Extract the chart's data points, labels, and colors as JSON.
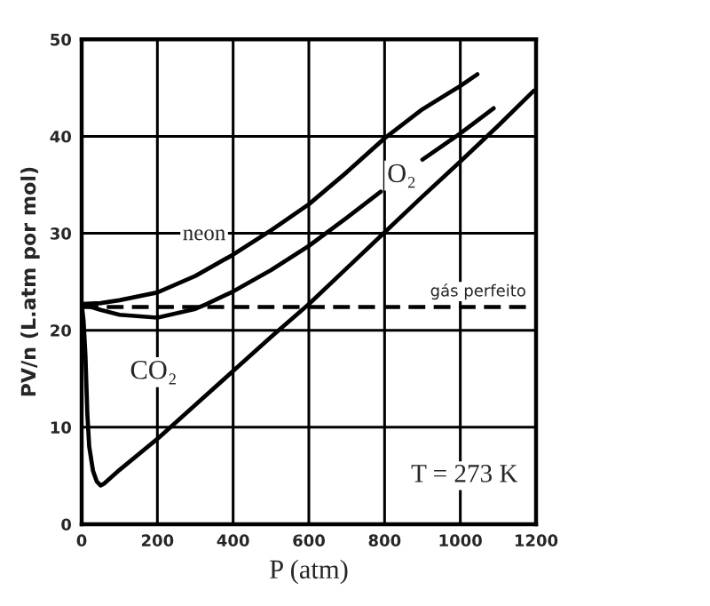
{
  "chart_data": {
    "type": "line",
    "xlabel": "P (atm)",
    "ylabel": "PV/n (L.atm por mol)",
    "xlim": [
      0,
      1200
    ],
    "ylim": [
      0,
      50
    ],
    "xticks": [
      0,
      200,
      400,
      600,
      800,
      1000,
      1200
    ],
    "yticks": [
      0,
      10,
      20,
      30,
      40,
      50
    ],
    "grid": true,
    "legend": false,
    "marker": "none",
    "annotations": [
      "T = 273 K"
    ],
    "series": [
      {
        "name": "neon",
        "color": "#000000",
        "line_style": "solid",
        "x": [
          0,
          50,
          100,
          200,
          300,
          400,
          500,
          600,
          700,
          800,
          900,
          1000,
          1045
        ],
        "values": [
          22.7,
          22.8,
          23.1,
          23.9,
          25.6,
          27.8,
          30.3,
          33.0,
          36.3,
          39.8,
          42.8,
          45.2,
          46.4
        ]
      },
      {
        "name": "O₂",
        "color": "#000000",
        "line_style": "solid",
        "x": [
          0,
          50,
          100,
          200,
          300,
          330,
          400,
          500,
          600,
          700,
          790,
          845,
          900,
          1000,
          1088
        ],
        "values": [
          22.7,
          22.1,
          21.6,
          21.3,
          22.2,
          22.7,
          24.0,
          26.2,
          28.7,
          31.6,
          34.3,
          null,
          37.6,
          40.3,
          42.9
        ]
      },
      {
        "name": "CO₂",
        "color": "#000000",
        "line_style": "solid",
        "x": [
          0,
          5,
          10,
          15,
          20,
          30,
          40,
          50,
          60,
          100,
          200,
          300,
          400,
          500,
          600,
          700,
          800,
          900,
          1000,
          1100,
          1194
        ],
        "values": [
          22.7,
          21.0,
          17.4,
          11.4,
          8.0,
          5.5,
          4.4,
          4.0,
          4.2,
          5.6,
          8.8,
          12.3,
          15.8,
          19.3,
          22.7,
          26.4,
          30.1,
          33.8,
          37.4,
          41.1,
          44.7
        ]
      },
      {
        "name": "gás perfeito",
        "color": "#000000",
        "line_style": "dashed",
        "x": [
          0,
          1200
        ],
        "values": [
          22.4,
          22.4
        ]
      }
    ]
  }
}
